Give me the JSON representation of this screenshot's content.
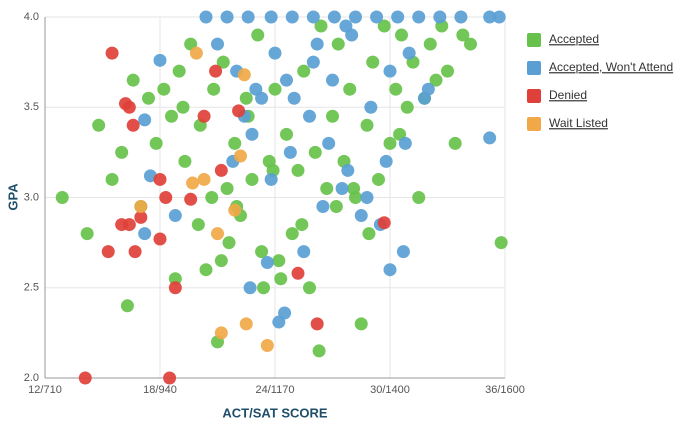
{
  "chart_data": {
    "type": "scatter",
    "x_label": "ACT/SAT SCORE",
    "y_label": "GPA",
    "xlim": [
      12,
      36
    ],
    "ylim": [
      2,
      4
    ],
    "xticks": [
      {
        "value": 12,
        "label": "12/710"
      },
      {
        "value": 18,
        "label": "18/940"
      },
      {
        "value": 24,
        "label": "24/1170"
      },
      {
        "value": 30,
        "label": "30/1400"
      },
      {
        "value": 36,
        "label": "36/1600"
      }
    ],
    "yticks": [
      {
        "value": 2,
        "label": "2.0"
      },
      2.5,
      {
        "value": 3,
        "label": "3.0"
      },
      3.5,
      {
        "value": 4,
        "label": "4.0"
      }
    ],
    "grid": true,
    "legend": "right",
    "series": [
      {
        "name": "Accepted",
        "color": "#66c24a",
        "x": [
          12.9,
          14.2,
          14.8,
          15.5,
          16.3,
          16.6,
          17.4,
          17.8,
          18.2,
          18.6,
          19.0,
          19.3,
          19.6,
          20.1,
          20.4,
          20.7,
          21.0,
          21.3,
          21.6,
          21.9,
          22.2,
          22.5,
          22.8,
          23.1,
          23.4,
          23.7,
          24.0,
          24.3,
          24.6,
          24.9,
          25.2,
          25.5,
          25.8,
          26.1,
          26.4,
          26.7,
          27.0,
          27.3,
          27.6,
          27.9,
          28.2,
          28.5,
          28.8,
          29.1,
          29.4,
          29.7,
          30.0,
          30.3,
          30.6,
          30.9,
          31.2,
          31.5,
          31.8,
          32.1,
          32.4,
          32.7,
          33.0,
          33.4,
          33.8,
          34.2,
          35.8,
          16.0,
          17.0,
          18.8,
          20.0,
          21.2,
          22.0,
          23.3,
          24.2,
          25.4,
          26.3,
          27.2,
          28.1,
          28.9,
          30.5,
          19.2,
          20.8,
          22.6,
          21.5,
          23.9
        ],
        "y": [
          3.0,
          2.8,
          3.4,
          3.1,
          2.4,
          3.65,
          3.55,
          3.3,
          3.6,
          3.45,
          3.7,
          3.2,
          3.85,
          3.4,
          2.6,
          3.0,
          2.2,
          3.75,
          2.75,
          3.3,
          2.9,
          3.55,
          3.1,
          3.9,
          2.5,
          3.2,
          3.6,
          2.55,
          3.35,
          2.8,
          3.15,
          3.7,
          2.5,
          3.25,
          3.95,
          3.05,
          3.45,
          3.85,
          3.2,
          3.6,
          3.0,
          2.3,
          3.4,
          3.75,
          3.1,
          3.95,
          3.3,
          3.6,
          3.9,
          3.5,
          3.75,
          3.0,
          3.55,
          3.85,
          3.65,
          3.95,
          3.7,
          3.3,
          3.9,
          3.85,
          2.75,
          3.25,
          2.95,
          2.55,
          2.85,
          2.65,
          2.95,
          2.7,
          2.65,
          2.85,
          2.15,
          2.95,
          3.05,
          2.8,
          3.35,
          3.5,
          3.6,
          3.45,
          3.05,
          3.15
        ]
      },
      {
        "name": "Accepted, Won't Attend",
        "color": "#5a9fd4",
        "x": [
          20.4,
          21.5,
          22.6,
          23.8,
          24.9,
          26.0,
          27.1,
          28.2,
          29.3,
          30.4,
          31.5,
          32.6,
          33.7,
          35.2,
          35.7,
          35.2,
          30.7,
          30.0,
          24.2,
          24.5,
          22.7,
          23.6,
          17.5,
          18.8,
          17.2,
          17.2,
          18.0,
          21.0,
          22.0,
          23.0,
          24.0,
          25.0,
          26.0,
          27.0,
          28.0,
          29.0,
          30.0,
          31.0,
          32.0,
          21.8,
          22.8,
          23.8,
          24.8,
          25.8,
          26.8,
          27.8,
          28.8,
          29.8,
          30.8,
          31.8,
          26.5,
          27.5,
          25.5,
          28.5,
          29.5,
          22.4,
          23.3,
          24.6,
          26.2,
          27.7
        ],
        "y": [
          4.0,
          4.0,
          4.0,
          4.0,
          4.0,
          4.0,
          4.0,
          4.0,
          4.0,
          4.0,
          4.0,
          4.0,
          4.0,
          4.0,
          4.0,
          3.33,
          2.7,
          2.6,
          2.31,
          2.36,
          2.5,
          2.64,
          3.12,
          2.9,
          2.8,
          3.43,
          3.76,
          3.85,
          3.7,
          3.6,
          3.8,
          3.55,
          3.75,
          3.65,
          3.9,
          3.5,
          3.7,
          3.8,
          3.6,
          3.2,
          3.35,
          3.1,
          3.25,
          3.45,
          3.3,
          3.15,
          3.0,
          3.2,
          3.3,
          3.55,
          2.95,
          3.05,
          2.7,
          2.9,
          2.85,
          3.45,
          3.55,
          3.65,
          3.85,
          3.95
        ]
      },
      {
        "name": "Denied",
        "color": "#e0403a",
        "x": [
          14.1,
          18.5,
          15.5,
          16.2,
          16.4,
          16.6,
          18.0,
          18.3,
          17.0,
          16.0,
          16.4,
          15.3,
          16.7,
          18.0,
          18.8,
          25.2,
          26.2,
          20.9,
          19.6,
          29.7,
          21.2,
          22.1,
          20.3
        ],
        "y": [
          2.0,
          2.0,
          3.8,
          3.52,
          3.5,
          3.4,
          3.1,
          3.0,
          2.89,
          2.85,
          2.85,
          2.7,
          2.7,
          2.77,
          2.5,
          2.58,
          2.3,
          3.7,
          2.99,
          2.86,
          3.15,
          3.48,
          3.45
        ]
      },
      {
        "name": "Wait Listed",
        "color": "#f0a848",
        "x": [
          19.9,
          19.7,
          21.0,
          21.2,
          22.5,
          23.6,
          17.0,
          21.9,
          22.2,
          20.3,
          22.4
        ],
        "y": [
          3.8,
          3.08,
          2.8,
          2.25,
          2.3,
          2.18,
          2.95,
          2.93,
          3.23,
          3.1,
          3.68
        ]
      }
    ]
  }
}
